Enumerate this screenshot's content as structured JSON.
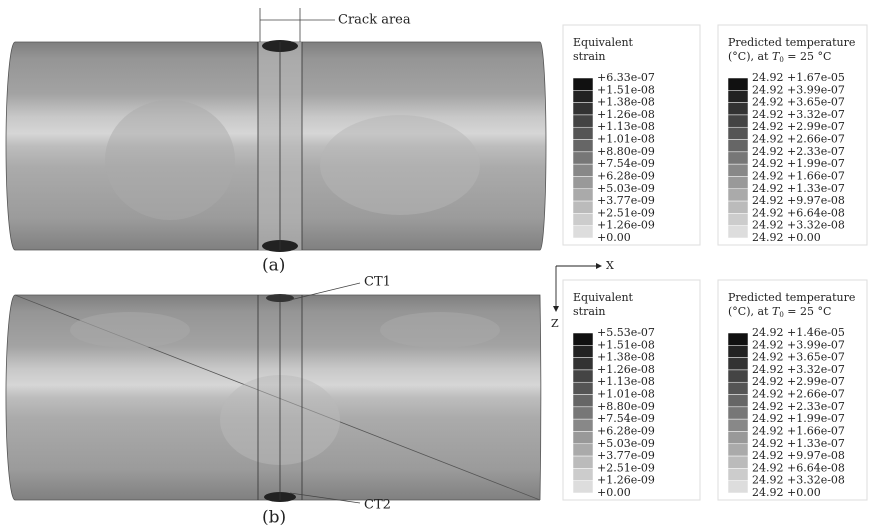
{
  "panels": [
    {
      "label": "(a)",
      "annotations": [
        "Crack area"
      ],
      "legends": [
        {
          "title_lines": [
            "Equivalent",
            "strain"
          ],
          "labels": [
            "+6.33e-07",
            "+1.51e-08",
            "+1.38e-08",
            "+1.26e-08",
            "+1.13e-08",
            "+1.01e-08",
            "+8.80e-09",
            "+7.54e-09",
            "+6.28e-09",
            "+5.03e-09",
            "+3.77e-09",
            "+2.51e-09",
            "+1.26e-09",
            "+0.00"
          ]
        },
        {
          "title_lines": [
            "Predicted temperature"
          ],
          "condition": {
            "prefix": "(°C), at ",
            "symbol": "T",
            "subscript": "0",
            "suffix": " = 25 °C"
          },
          "labels": [
            "24.92 +1.67e-05",
            "24.92 +3.99e-07",
            "24.92 +3.65e-07",
            "24.92 +3.32e-07",
            "24.92 +2.99e-07",
            "24.92 +2.66e-07",
            "24.92 +2.33e-07",
            "24.92 +1.99e-07",
            "24.92 +1.66e-07",
            "24.92 +1.33e-07",
            "24.92 +9.97e-08",
            "24.92 +6.64e-08",
            "24.92 +3.32e-08",
            "24.92 +0.00"
          ]
        }
      ]
    },
    {
      "label": "(b)",
      "annotations": [
        "CT1",
        "CT2"
      ],
      "legends": [
        {
          "title_lines": [
            "Equivalent",
            "strain"
          ],
          "labels": [
            "+5.53e-07",
            "+1.51e-08",
            "+1.38e-08",
            "+1.26e-08",
            "+1.13e-08",
            "+1.01e-08",
            "+8.80e-09",
            "+7.54e-09",
            "+6.28e-09",
            "+5.03e-09",
            "+3.77e-09",
            "+2.51e-09",
            "+1.26e-09",
            "+0.00"
          ]
        },
        {
          "title_lines": [
            "Predicted temperature"
          ],
          "condition": {
            "prefix": "(°C), at ",
            "symbol": "T",
            "subscript": "0",
            "suffix": " = 25 °C"
          },
          "labels": [
            "24.92 +1.46e-05",
            "24.92 +3.99e-07",
            "24.92 +3.65e-07",
            "24.92 +3.32e-07",
            "24.92 +2.99e-07",
            "24.92 +2.66e-07",
            "24.92 +2.33e-07",
            "24.92 +1.99e-07",
            "24.92 +1.66e-07",
            "24.92 +1.33e-07",
            "24.92 +9.97e-08",
            "24.92 +6.64e-08",
            "24.92 +3.32e-08",
            "24.92 +0.00"
          ]
        }
      ]
    }
  ],
  "axes": {
    "x": "X",
    "z": "Z"
  }
}
